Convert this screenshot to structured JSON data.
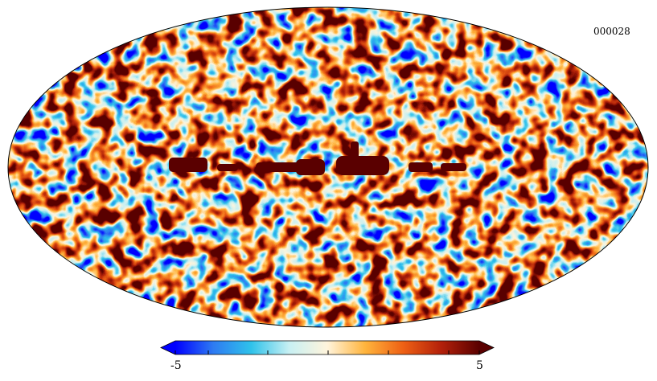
{
  "map": {
    "id_label": "000028",
    "projection": "mollweide",
    "colormap": "planck"
  },
  "colorbar": {
    "min_label": "-5",
    "max_label": "5",
    "min": -5,
    "max": 5,
    "extend": "both",
    "colors": [
      "#0000ff",
      "#2e7bf2",
      "#2fc2ea",
      "#c8f0f3",
      "#fff4dc",
      "#ffb43c",
      "#ee6014",
      "#b3200a",
      "#5a0000"
    ]
  }
}
